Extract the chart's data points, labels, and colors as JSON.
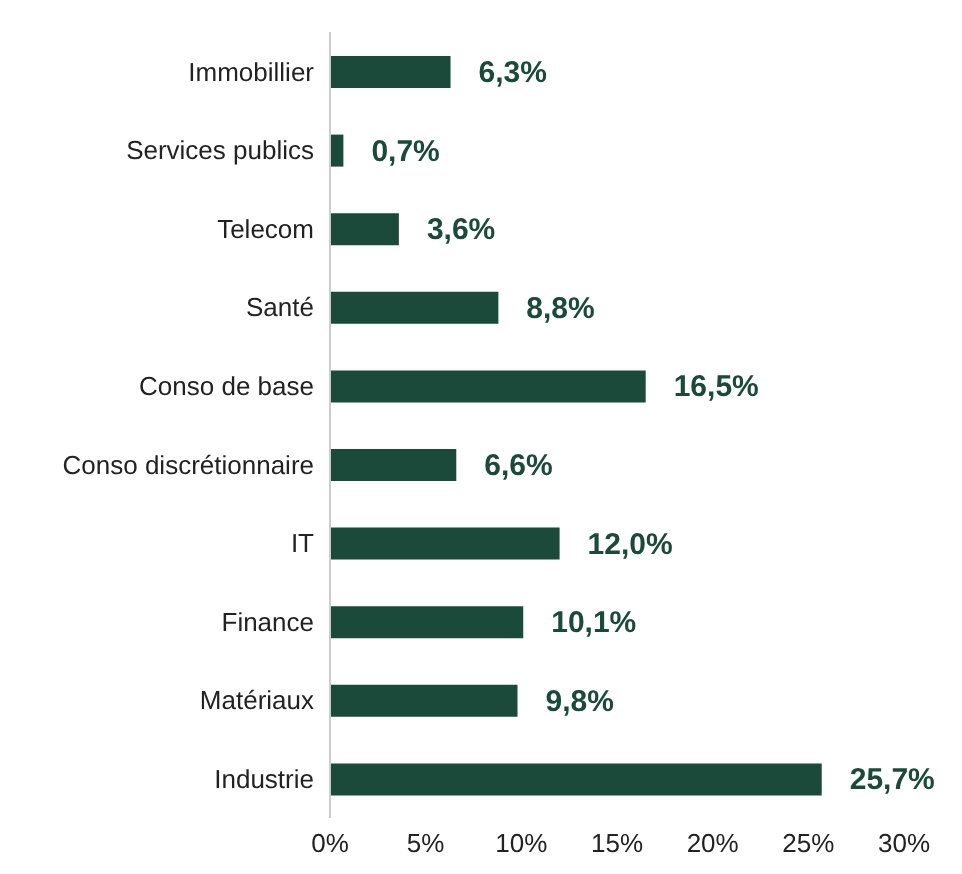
{
  "chart_data": {
    "type": "bar",
    "orientation": "horizontal",
    "categories": [
      "Immobillier",
      "Services publics",
      "Telecom",
      "Santé",
      "Conso de base",
      "Conso discrétionnaire",
      "IT",
      "Finance",
      "Matériaux",
      "Industrie"
    ],
    "values": [
      6.3,
      0.7,
      3.6,
      8.8,
      16.5,
      6.6,
      12.0,
      10.1,
      9.8,
      25.7
    ],
    "value_labels": [
      "6,3%",
      "0,7%",
      "3,6%",
      "8,8%",
      "16,5%",
      "6,6%",
      "12,0%",
      "10,1%",
      "9,8%",
      "25,7%"
    ],
    "color": "#1b4a3a",
    "xlim": [
      0,
      30
    ],
    "xticks": [
      {
        "value": 0,
        "label": "0%"
      },
      {
        "value": 5,
        "label": "5%"
      },
      {
        "value": 10,
        "label": "10%"
      },
      {
        "value": 15,
        "label": "15%"
      },
      {
        "value": 20,
        "label": "20%"
      },
      {
        "value": 25,
        "label": "25%"
      },
      {
        "value": 30,
        "label": "30%"
      }
    ],
    "grid": false,
    "legend": false
  }
}
